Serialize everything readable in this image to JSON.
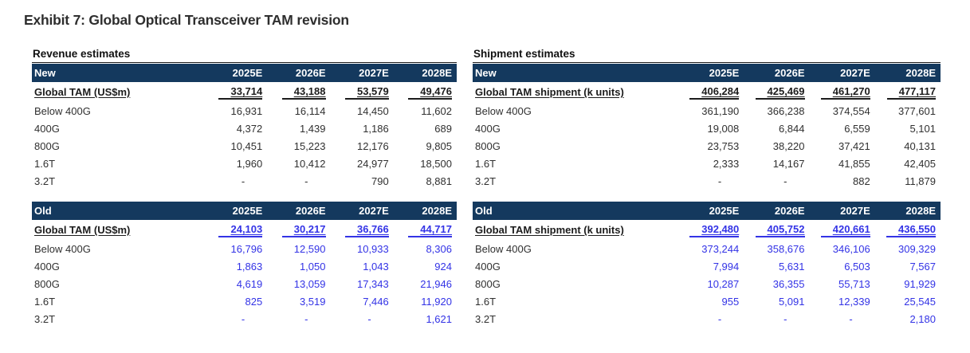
{
  "title": "Exhibit 7: Global Optical Transceiver TAM revision",
  "years": [
    "2025E",
    "2026E",
    "2027E",
    "2028E"
  ],
  "colors": {
    "header_bg": "#14395E",
    "header_text": "#FFFFFF",
    "old_values": "#3333E6",
    "body_text": "#303030"
  },
  "tables": [
    {
      "section_title": "Revenue estimates",
      "blocks": [
        {
          "name": "New",
          "style": "new",
          "total_label": "Global TAM (US$m)",
          "totals": [
            "33,714",
            "43,188",
            "53,579",
            "49,476"
          ],
          "rows": [
            {
              "label": "Below 400G",
              "values": [
                "16,931",
                "16,114",
                "14,450",
                "11,602"
              ]
            },
            {
              "label": "400G",
              "values": [
                "4,372",
                "1,439",
                "1,186",
                "689"
              ]
            },
            {
              "label": "800G",
              "values": [
                "10,451",
                "15,223",
                "12,176",
                "9,805"
              ]
            },
            {
              "label": "1.6T",
              "values": [
                "1,960",
                "10,412",
                "24,977",
                "18,500"
              ]
            },
            {
              "label": "3.2T",
              "values": [
                "-",
                "-",
                "790",
                "8,881"
              ]
            }
          ]
        },
        {
          "name": "Old",
          "style": "old",
          "total_label": "Global TAM (US$m)",
          "totals": [
            "24,103",
            "30,217",
            "36,766",
            "44,717"
          ],
          "rows": [
            {
              "label": "Below 400G",
              "values": [
                "16,796",
                "12,590",
                "10,933",
                "8,306"
              ]
            },
            {
              "label": "400G",
              "values": [
                "1,863",
                "1,050",
                "1,043",
                "924"
              ]
            },
            {
              "label": "800G",
              "values": [
                "4,619",
                "13,059",
                "17,343",
                "21,946"
              ]
            },
            {
              "label": "1.6T",
              "values": [
                "825",
                "3,519",
                "7,446",
                "11,920"
              ]
            },
            {
              "label": "3.2T",
              "values": [
                "-",
                "-",
                "-",
                "1,621"
              ]
            }
          ]
        }
      ]
    },
    {
      "section_title": "Shipment estimates",
      "blocks": [
        {
          "name": "New",
          "style": "new",
          "total_label": "Global TAM shipment (k units)",
          "totals": [
            "406,284",
            "425,469",
            "461,270",
            "477,117"
          ],
          "rows": [
            {
              "label": "Below 400G",
              "values": [
                "361,190",
                "366,238",
                "374,554",
                "377,601"
              ]
            },
            {
              "label": "400G",
              "values": [
                "19,008",
                "6,844",
                "6,559",
                "5,101"
              ]
            },
            {
              "label": "800G",
              "values": [
                "23,753",
                "38,220",
                "37,421",
                "40,131"
              ]
            },
            {
              "label": "1.6T",
              "values": [
                "2,333",
                "14,167",
                "41,855",
                "42,405"
              ]
            },
            {
              "label": "3.2T",
              "values": [
                "-",
                "-",
                "882",
                "11,879"
              ]
            }
          ]
        },
        {
          "name": "Old",
          "style": "old",
          "total_label": "Global TAM shipment (k units)",
          "totals": [
            "392,480",
            "405,752",
            "420,661",
            "436,550"
          ],
          "rows": [
            {
              "label": "Below 400G",
              "values": [
                "373,244",
                "358,676",
                "346,106",
                "309,329"
              ]
            },
            {
              "label": "400G",
              "values": [
                "7,994",
                "5,631",
                "6,503",
                "7,567"
              ]
            },
            {
              "label": "800G",
              "values": [
                "10,287",
                "36,355",
                "55,713",
                "91,929"
              ]
            },
            {
              "label": "1.6T",
              "values": [
                "955",
                "5,091",
                "12,339",
                "25,545"
              ]
            },
            {
              "label": "3.2T",
              "values": [
                "-",
                "-",
                "-",
                "2,180"
              ]
            }
          ]
        }
      ]
    }
  ]
}
